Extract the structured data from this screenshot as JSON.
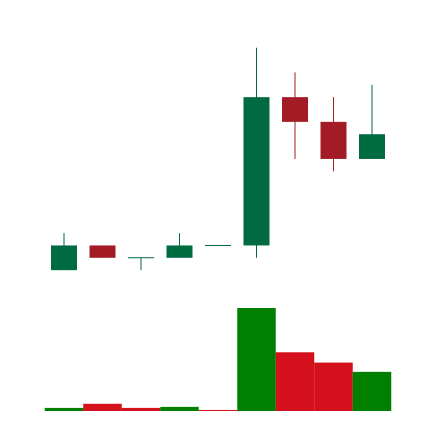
{
  "chart_data": {
    "type": "candlestick",
    "price_panel": {
      "ylim": [
        -5.6,
        100
      ],
      "grid": false
    },
    "volume_panel": {
      "ylim": [
        0,
        100
      ],
      "grid": false
    },
    "candles": [
      {
        "open": 0,
        "close": 10,
        "high": 15,
        "low": 0
      },
      {
        "open": 10,
        "close": 5,
        "high": 10,
        "low": 5
      },
      {
        "open": 5,
        "close": 5,
        "high": 5,
        "low": 0
      },
      {
        "open": 5,
        "close": 10,
        "high": 15,
        "low": 5
      },
      {
        "open": 10,
        "close": 10,
        "high": 10,
        "low": 10
      },
      {
        "open": 10,
        "close": 70,
        "high": 90,
        "low": 5
      },
      {
        "open": 70,
        "close": 60,
        "high": 80,
        "low": 45
      },
      {
        "open": 60,
        "close": 45,
        "high": 70,
        "low": 40
      },
      {
        "open": 45,
        "close": 55,
        "high": 75,
        "low": 45
      }
    ],
    "volume": [
      {
        "value": 3,
        "direction": "up"
      },
      {
        "value": 7,
        "direction": "down"
      },
      {
        "value": 3,
        "direction": "down"
      },
      {
        "value": 4,
        "direction": "up"
      },
      {
        "value": 1,
        "direction": "down"
      },
      {
        "value": 100,
        "direction": "up"
      },
      {
        "value": 57,
        "direction": "down"
      },
      {
        "value": 47,
        "direction": "down"
      },
      {
        "value": 38,
        "direction": "up"
      }
    ],
    "colors": {
      "candle_up": "#006a40",
      "candle_down": "#a31c25",
      "volume_up": "#008000",
      "volume_down": "#d3101b"
    }
  }
}
